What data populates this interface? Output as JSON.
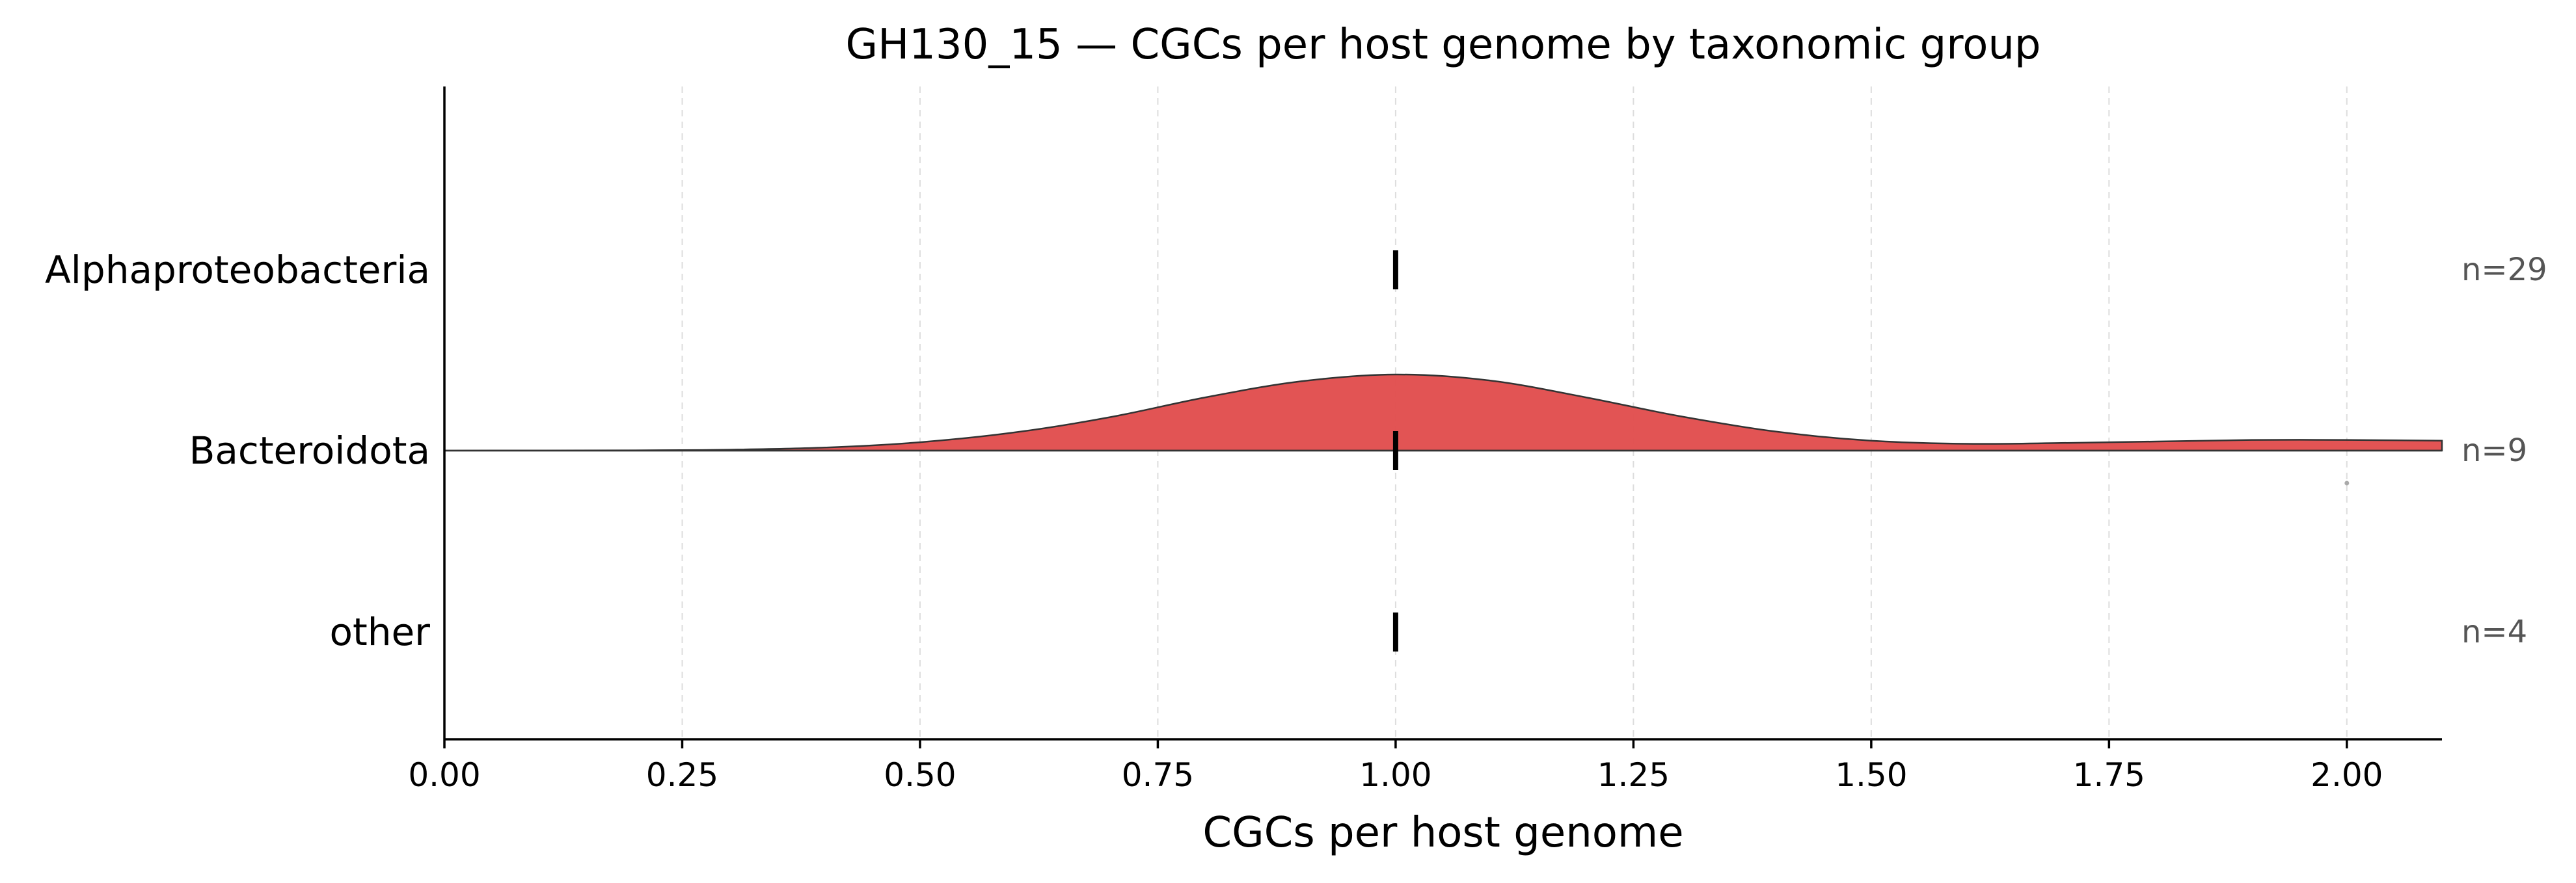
{
  "chart_data": {
    "type": "ridgeline",
    "title": "GH130_15 — CGCs per host genome by taxonomic group",
    "xlabel": "CGCs per host genome",
    "ylabel": "",
    "xlim": [
      0,
      2.1
    ],
    "x_ticks": [
      0,
      0.25,
      0.5,
      0.75,
      1.0,
      1.25,
      1.5,
      1.75,
      2.0
    ],
    "x_tick_labels": [
      "0.00",
      "0.25",
      "0.50",
      "0.75",
      "1.00",
      "1.25",
      "1.50",
      "1.75",
      "2.00"
    ],
    "grid": "vertical dashed",
    "groups": [
      {
        "name": "Alphaproteobacteria",
        "n_label": "n=29",
        "median": 1.0,
        "has_density": false
      },
      {
        "name": "Bacteroidota",
        "n_label": "n=9",
        "median": 1.0,
        "has_density": true,
        "color": "#e04b4b",
        "density_x": [
          0,
          0.2,
          0.3,
          0.4,
          0.5,
          0.6,
          0.7,
          0.8,
          0.9,
          1.0,
          1.1,
          1.2,
          1.3,
          1.4,
          1.5,
          1.6,
          1.7,
          1.8,
          1.9,
          2.0,
          2.1
        ],
        "density_y": [
          0.0,
          0.003,
          0.012,
          0.04,
          0.11,
          0.24,
          0.44,
          0.7,
          0.91,
          1.0,
          0.92,
          0.7,
          0.45,
          0.25,
          0.13,
          0.09,
          0.1,
          0.12,
          0.14,
          0.14,
          0.13
        ],
        "outliers": [
          2.0
        ]
      },
      {
        "name": "other",
        "n_label": "n=4",
        "median": 1.0,
        "has_density": false
      }
    ]
  }
}
